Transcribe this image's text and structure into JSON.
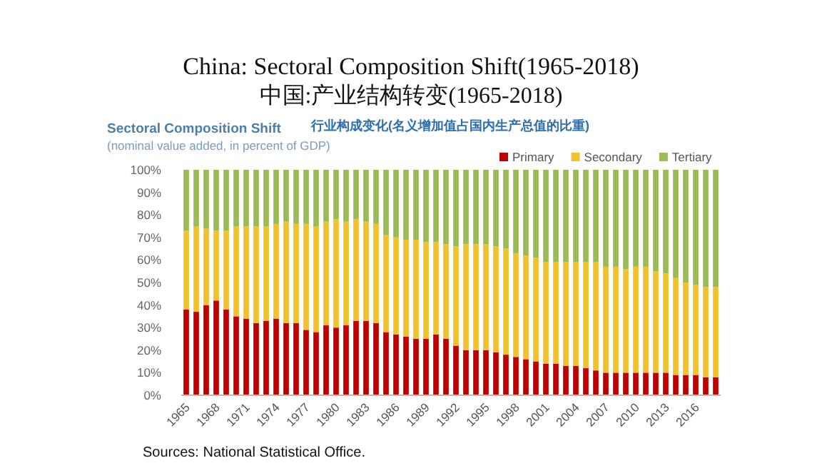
{
  "chart_data": {
    "type": "bar",
    "stacked": true,
    "title": "China: Sectoral Composition Shift(1965-2018)",
    "subtitle": "中国:产业结构转变(1965-2018)",
    "annotations": [
      "Sectoral Composition Shift",
      "行业构成变化(名义增加值占国内生产总值的比重)",
      "(nominal value added, in percent of GDP)",
      "Sources: National Statistical Office."
    ],
    "categories": [
      "1965",
      null,
      null,
      "1968",
      null,
      null,
      "1971",
      null,
      null,
      "1974",
      null,
      null,
      "1977",
      null,
      null,
      "1980",
      null,
      null,
      "1983",
      null,
      null,
      "1986",
      null,
      null,
      "1989",
      null,
      null,
      "1992",
      null,
      null,
      "1995",
      null,
      null,
      "1998",
      null,
      null,
      "2001",
      null,
      null,
      "2004",
      null,
      null,
      "2007",
      null,
      null,
      "2010",
      null,
      null,
      "2013",
      null,
      null,
      "2016",
      null,
      null
    ],
    "series": [
      {
        "name": "Primary",
        "color": "#c00000",
        "values": [
          38,
          37,
          40,
          42,
          38,
          35,
          34,
          32,
          33,
          34,
          32,
          32,
          29,
          28,
          31,
          30,
          31,
          33,
          33,
          32,
          28,
          27,
          26,
          25,
          25,
          27,
          25,
          22,
          20,
          20,
          20,
          19,
          18,
          17,
          16,
          15,
          14,
          14,
          13,
          13,
          12,
          11,
          10,
          10,
          10,
          10,
          10,
          10,
          10,
          9,
          9,
          9,
          8,
          8
        ]
      },
      {
        "name": "Secondary",
        "color": "#f2c12e",
        "values": [
          35,
          38,
          34,
          31,
          35,
          40,
          41,
          43,
          42,
          42,
          45,
          44,
          47,
          47,
          46,
          48,
          46,
          45,
          44,
          44,
          43,
          43,
          43,
          44,
          43,
          41,
          42,
          44,
          47,
          47,
          47,
          47,
          47,
          46,
          46,
          46,
          45,
          45,
          46,
          46,
          47,
          48,
          47,
          47,
          46,
          47,
          47,
          45,
          44,
          43,
          41,
          40,
          40,
          40
        ]
      },
      {
        "name": "Tertiary",
        "color": "#9bbb59",
        "values": [
          27,
          25,
          26,
          27,
          27,
          25,
          25,
          25,
          25,
          24,
          23,
          24,
          24,
          25,
          23,
          22,
          23,
          22,
          23,
          24,
          29,
          30,
          31,
          31,
          32,
          32,
          33,
          34,
          33,
          33,
          33,
          34,
          35,
          37,
          38,
          39,
          41,
          41,
          41,
          41,
          41,
          41,
          43,
          43,
          44,
          43,
          43,
          45,
          46,
          48,
          50,
          51,
          52,
          52
        ]
      }
    ],
    "ylim": [
      0,
      100
    ],
    "yticks": [
      {
        "value": 0,
        "label": "0%"
      },
      {
        "value": 10,
        "label": "10%"
      },
      {
        "value": 20,
        "label": "20%"
      },
      {
        "value": 30,
        "label": "30%"
      },
      {
        "value": 40,
        "label": "40%"
      },
      {
        "value": 50,
        "label": "50%"
      },
      {
        "value": 60,
        "label": "60%"
      },
      {
        "value": 70,
        "label": "70%"
      },
      {
        "value": 80,
        "label": "80%"
      },
      {
        "value": 90,
        "label": "90%"
      },
      {
        "value": 100,
        "label": "100%"
      }
    ],
    "legend": "top right",
    "grid": false
  }
}
